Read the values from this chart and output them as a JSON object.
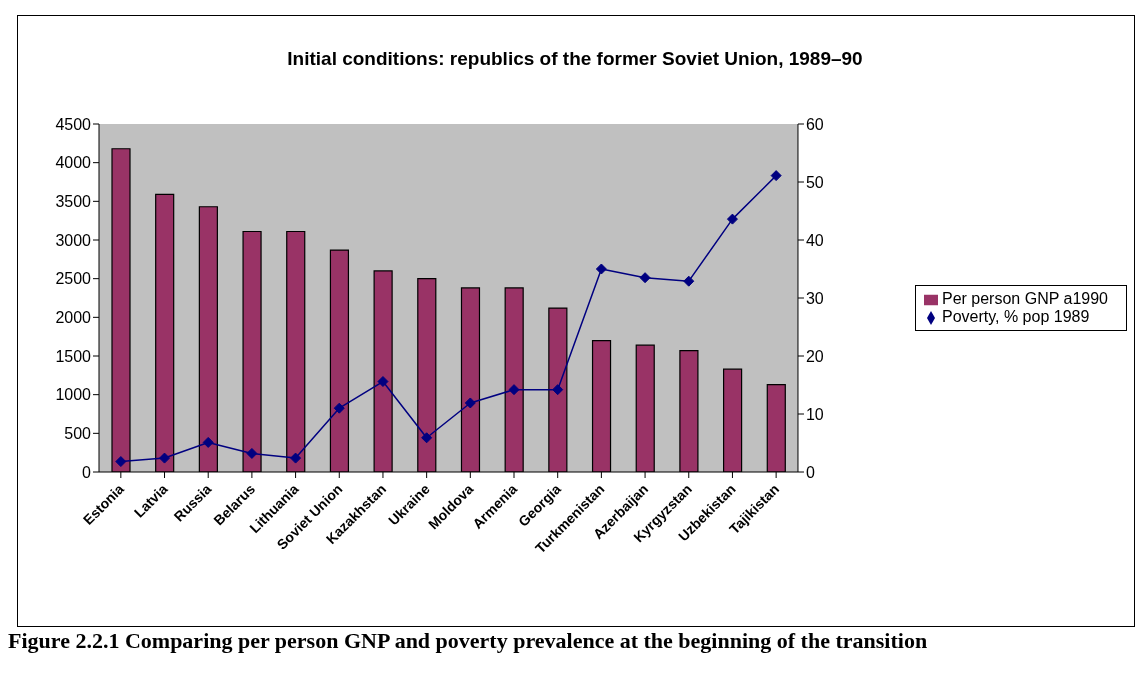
{
  "chart_data": {
    "type": "bar",
    "title": "Initial conditions: republics of the former Soviet Union, 1989–90",
    "categories": [
      "Estonia",
      "Latvia",
      "Russia",
      "Belarus",
      "Lithuania",
      "Soviet Union",
      "Kazakhstan",
      "Ukraine",
      "Moldova",
      "Armenia",
      "Georgia",
      "Turkmenistan",
      "Azerbaijan",
      "Kyrgyzstan",
      "Uzbekistan",
      "Tajikistan"
    ],
    "series": [
      {
        "name": "Per person GNP a1990",
        "color": "#993366",
        "values": [
          4180,
          3590,
          3430,
          3110,
          3110,
          2870,
          2600,
          2500,
          2380,
          2380,
          2120,
          1700,
          1640,
          1570,
          1330,
          1130
        ]
      },
      {
        "name": "Poverty, % pop 1989",
        "type": "line",
        "axis": "y2",
        "color": "#000080",
        "values": [
          1.8,
          2.4,
          5.1,
          3.2,
          2.4,
          11.0,
          15.6,
          5.9,
          11.9,
          14.2,
          14.2,
          35.0,
          33.5,
          32.9,
          43.6,
          51.1
        ]
      }
    ],
    "ylim": [
      0,
      4500
    ],
    "yticks": [
      0,
      500,
      1000,
      1500,
      2000,
      2500,
      3000,
      3500,
      4000,
      4500
    ],
    "y2lim": [
      0,
      60
    ],
    "y2ticks": [
      0,
      10,
      20,
      30,
      40,
      50,
      60
    ],
    "grid": false,
    "legend": "right",
    "marker": "diamond",
    "annotations": [
      "Figure 2.2.1 Comparing per person GNP and poverty prevalence at the beginning of the transition"
    ]
  }
}
